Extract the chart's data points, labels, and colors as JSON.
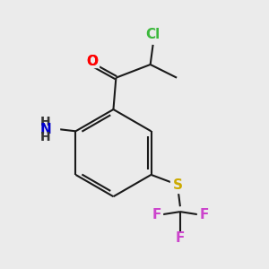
{
  "background_color": "#ebebeb",
  "bond_color": "#1a1a1a",
  "atom_colors": {
    "Cl": "#3cb83c",
    "O": "#ff0000",
    "N": "#0000cc",
    "S": "#ccaa00",
    "F": "#cc44cc"
  },
  "lw": 1.5,
  "font_size": 11
}
